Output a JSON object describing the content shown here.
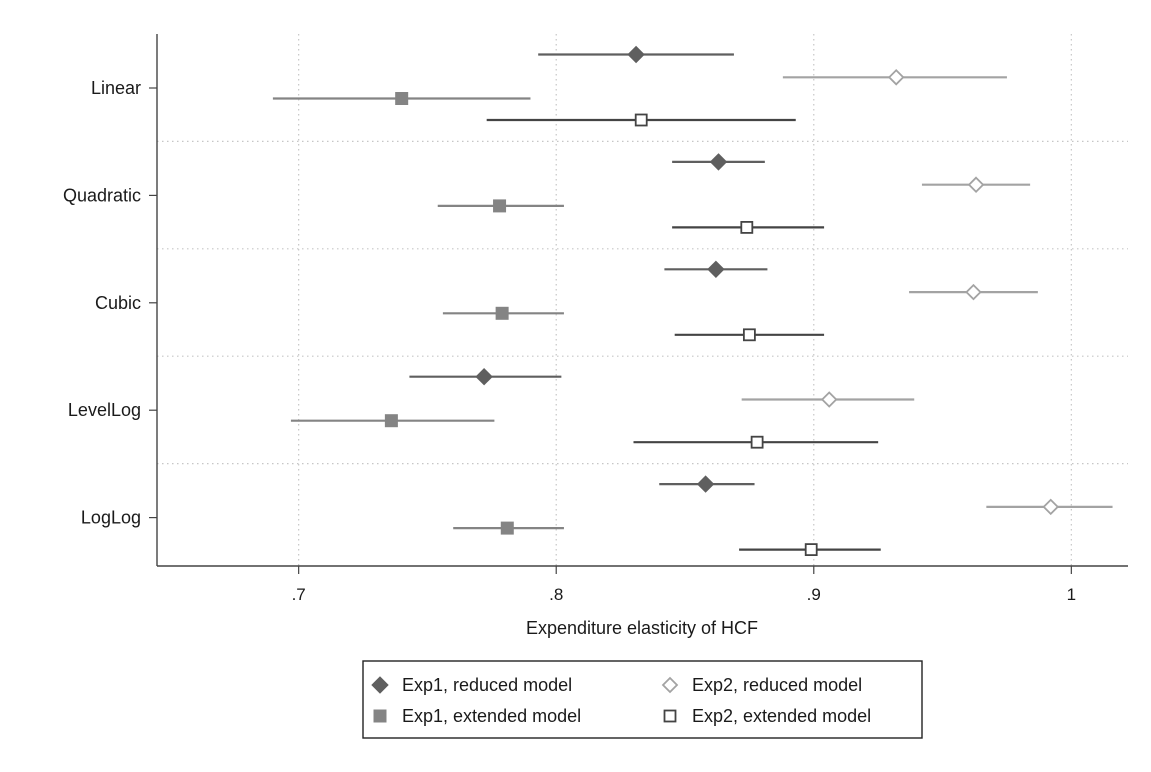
{
  "chart_data": {
    "type": "coefficient-plot",
    "title": "",
    "xlabel": "Expenditure elasticity of HCF",
    "ylabel": "",
    "xlim": [
      0.645,
      1.022
    ],
    "xticks": [
      0.7,
      0.8,
      0.9,
      1.0
    ],
    "xtick_labels": [
      ".7",
      ".8",
      ".9",
      "1"
    ],
    "grid": true,
    "legend_position": "bottom",
    "categories": [
      "Linear",
      "Quadratic",
      "Cubic",
      "LevelLog",
      "LogLog"
    ],
    "series": [
      {
        "name": "Exp1, reduced model",
        "marker": "filled-diamond",
        "color": "#5f5f5f",
        "points": [
          {
            "category": "Linear",
            "estimate": 0.831,
            "ci": [
              0.793,
              0.869
            ]
          },
          {
            "category": "Quadratic",
            "estimate": 0.863,
            "ci": [
              0.845,
              0.881
            ]
          },
          {
            "category": "Cubic",
            "estimate": 0.862,
            "ci": [
              0.842,
              0.882
            ]
          },
          {
            "category": "LevelLog",
            "estimate": 0.772,
            "ci": [
              0.743,
              0.802
            ]
          },
          {
            "category": "LogLog",
            "estimate": 0.858,
            "ci": [
              0.84,
              0.877
            ]
          }
        ]
      },
      {
        "name": "Exp2, reduced model",
        "marker": "hollow-diamond",
        "color": "#a3a3a3",
        "points": [
          {
            "category": "Linear",
            "estimate": 0.932,
            "ci": [
              0.888,
              0.975
            ]
          },
          {
            "category": "Quadratic",
            "estimate": 0.963,
            "ci": [
              0.942,
              0.984
            ]
          },
          {
            "category": "Cubic",
            "estimate": 0.962,
            "ci": [
              0.937,
              0.987
            ]
          },
          {
            "category": "LevelLog",
            "estimate": 0.906,
            "ci": [
              0.872,
              0.939
            ]
          },
          {
            "category": "LogLog",
            "estimate": 0.992,
            "ci": [
              0.967,
              1.016
            ]
          }
        ]
      },
      {
        "name": "Exp1, extended model",
        "marker": "filled-square",
        "color": "#848484",
        "points": [
          {
            "category": "Linear",
            "estimate": 0.74,
            "ci": [
              0.69,
              0.79
            ]
          },
          {
            "category": "Quadratic",
            "estimate": 0.778,
            "ci": [
              0.754,
              0.803
            ]
          },
          {
            "category": "Cubic",
            "estimate": 0.779,
            "ci": [
              0.756,
              0.803
            ]
          },
          {
            "category": "LevelLog",
            "estimate": 0.736,
            "ci": [
              0.697,
              0.776
            ]
          },
          {
            "category": "LogLog",
            "estimate": 0.781,
            "ci": [
              0.76,
              0.803
            ]
          }
        ]
      },
      {
        "name": "Exp2, extended model",
        "marker": "hollow-square",
        "color": "#444444",
        "points": [
          {
            "category": "Linear",
            "estimate": 0.833,
            "ci": [
              0.773,
              0.893
            ]
          },
          {
            "category": "Quadratic",
            "estimate": 0.874,
            "ci": [
              0.845,
              0.904
            ]
          },
          {
            "category": "Cubic",
            "estimate": 0.875,
            "ci": [
              0.846,
              0.904
            ]
          },
          {
            "category": "LevelLog",
            "estimate": 0.878,
            "ci": [
              0.83,
              0.925
            ]
          },
          {
            "category": "LogLog",
            "estimate": 0.899,
            "ci": [
              0.871,
              0.926
            ]
          }
        ]
      }
    ],
    "legend_order": [
      "Exp1, reduced model",
      "Exp2, reduced model",
      "Exp1, extended model",
      "Exp2, extended model"
    ]
  }
}
